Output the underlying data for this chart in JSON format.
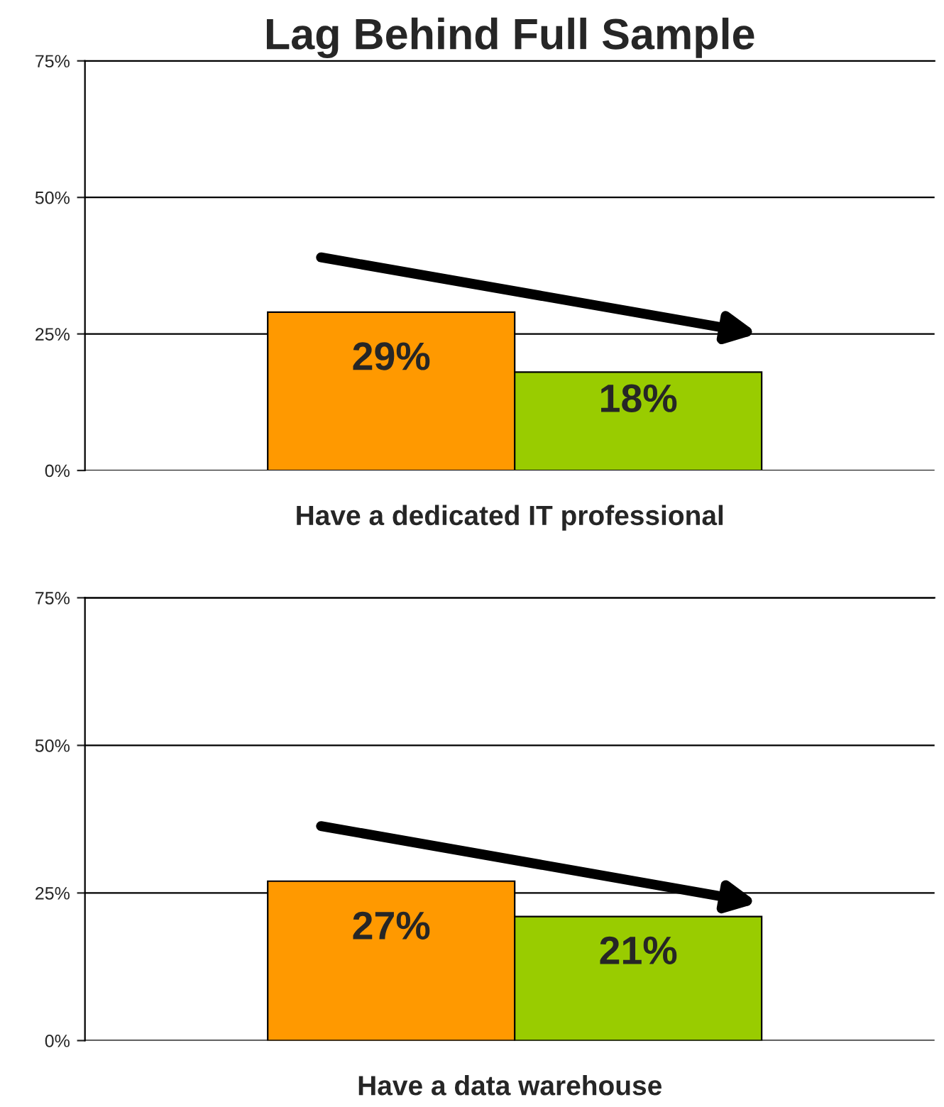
{
  "chart_data": [
    {
      "type": "bar",
      "title": "Lag Behind Full Sample",
      "xlabel": "Have a dedicated IT professional",
      "categories": [
        null,
        null
      ],
      "values": [
        29,
        18
      ],
      "colors": [
        "#ff9900",
        "#99cc00"
      ],
      "value_labels": [
        "29%",
        "18%"
      ],
      "ylim": [
        0,
        75
      ],
      "yticks": [
        {
          "value": 0,
          "label": "0%"
        },
        {
          "value": 25,
          "label": "25%"
        },
        {
          "value": 50,
          "label": "50%"
        },
        {
          "value": 75,
          "label": "75%"
        }
      ],
      "grid": "y",
      "legend": false
    },
    {
      "type": "bar",
      "xlabel": "Have a data warehouse",
      "categories": [
        null,
        null
      ],
      "values": [
        27,
        21
      ],
      "colors": [
        "#ff9900",
        "#99cc00"
      ],
      "value_labels": [
        "27%",
        "21%"
      ],
      "ylim": [
        0,
        75
      ],
      "yticks": [
        {
          "value": 0,
          "label": "0%"
        },
        {
          "value": 25,
          "label": "25%"
        },
        {
          "value": 50,
          "label": "50%"
        },
        {
          "value": 75,
          "label": "75%"
        }
      ],
      "grid": "y",
      "legend": false
    }
  ]
}
